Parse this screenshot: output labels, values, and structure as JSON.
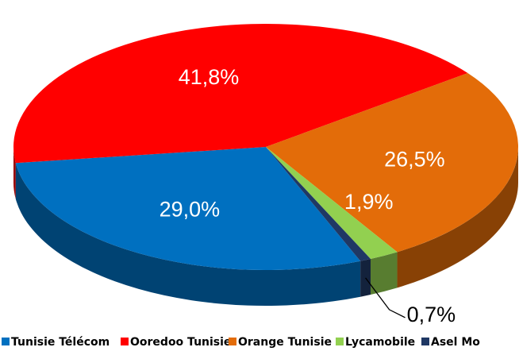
{
  "chart_data": {
    "type": "pie",
    "categories": [
      "Tunisie Télécom",
      "Ooredoo Tunisie",
      "Orange Tunisie",
      "Lycamobile",
      "Asel Mo"
    ],
    "values": [
      29.0,
      41.8,
      26.5,
      1.9,
      0.7
    ],
    "value_labels": [
      "29,0%",
      "41,8%",
      "26,5%",
      "1,9%",
      "0,7%"
    ],
    "colors": [
      "#0070c0",
      "#ff0000",
      "#e36c09",
      "#92d050",
      "#1f3864"
    ],
    "legend": "bottom"
  }
}
